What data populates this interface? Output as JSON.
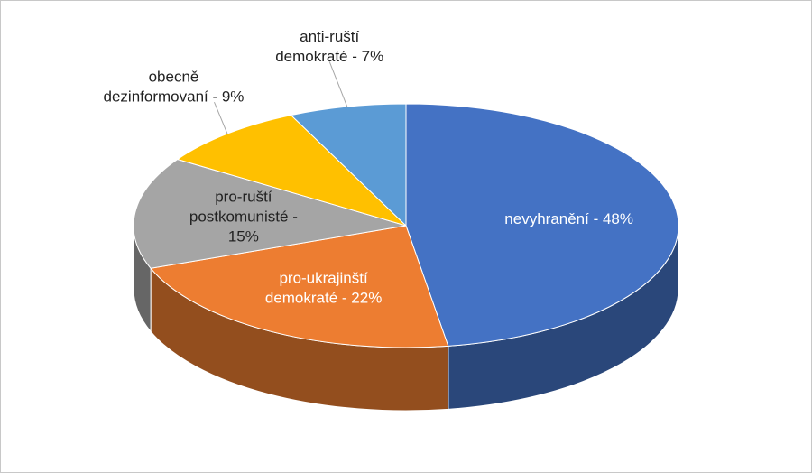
{
  "chart_data": {
    "type": "pie",
    "value_labels": [
      [
        "nevyhranění - 48%"
      ],
      [
        "pro-ukrajinští",
        "demokraté - 22%"
      ],
      [
        "pro-ruští",
        "postkomunisté -",
        "15%"
      ],
      [
        "obecně",
        "dezinformovaní - 9%"
      ],
      [
        "anti-ruští",
        "demokraté - 7%"
      ]
    ],
    "values": [
      48,
      22,
      15,
      9,
      7
    ],
    "colors": [
      "#4472c4",
      "#ed7d31",
      "#a5a5a5",
      "#ffc000",
      "#5b9bd5"
    ]
  }
}
